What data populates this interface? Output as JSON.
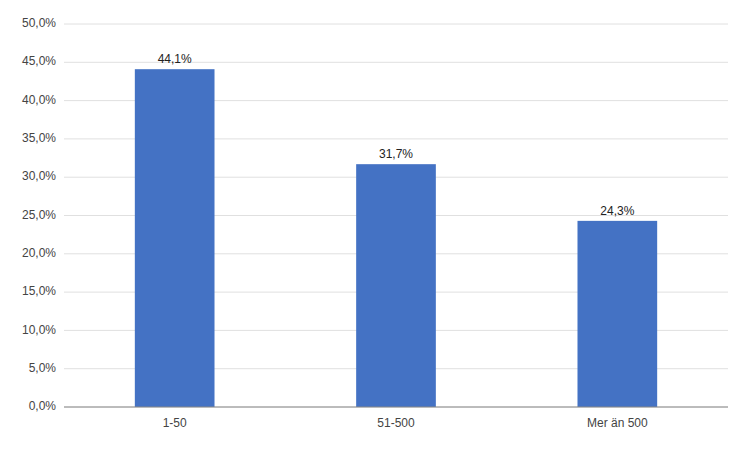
{
  "chart_data": {
    "type": "bar",
    "categories": [
      "1-50",
      "51-500",
      "Mer än 500"
    ],
    "values": [
      0.441,
      0.317,
      0.243
    ],
    "value_labels": [
      "44,1%",
      "31,7%",
      "24,3%"
    ],
    "data_labels": true,
    "color": "#4472C4",
    "ylim": [
      0,
      0.5
    ],
    "yticks": [
      {
        "value": 0.0,
        "label": "0,0%"
      },
      {
        "value": 0.05,
        "label": "5,0%"
      },
      {
        "value": 0.1,
        "label": "10,0%"
      },
      {
        "value": 0.15,
        "label": "15,0%"
      },
      {
        "value": 0.2,
        "label": "20,0%"
      },
      {
        "value": 0.25,
        "label": "25,0%"
      },
      {
        "value": 0.3,
        "label": "30,0%"
      },
      {
        "value": 0.35,
        "label": "35,0%"
      },
      {
        "value": 0.4,
        "label": "40,0%"
      },
      {
        "value": 0.45,
        "label": "45,0%"
      },
      {
        "value": 0.5,
        "label": "50,0%"
      }
    ],
    "grid": true
  }
}
